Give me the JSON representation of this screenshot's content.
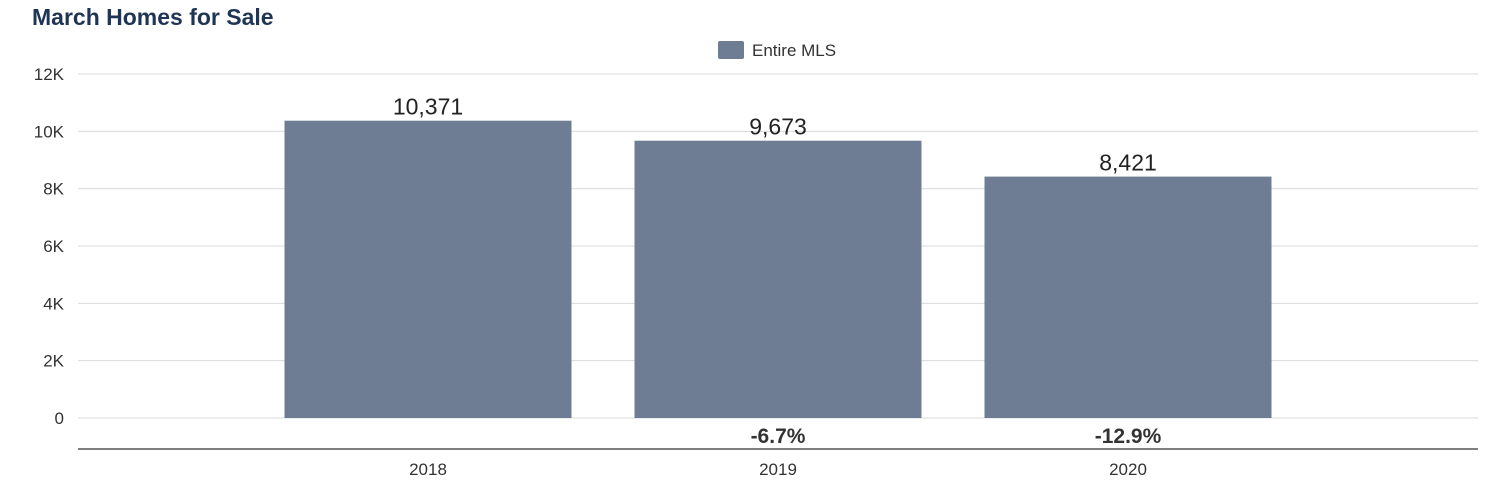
{
  "chart_data": {
    "type": "bar",
    "title": "March Homes for Sale",
    "categories": [
      "2018",
      "2019",
      "2020"
    ],
    "series": [
      {
        "name": "Entire MLS",
        "values": [
          10371,
          9673,
          8421
        ],
        "color": "#6e7d93"
      }
    ],
    "data_labels": [
      "10,371",
      "9,673",
      "8,421"
    ],
    "change_labels": [
      "",
      "-6.7%",
      "-12.9%"
    ],
    "ylim": [
      0,
      12000
    ],
    "y_ticks": [
      0,
      2000,
      4000,
      6000,
      8000,
      10000,
      12000
    ],
    "y_tick_labels": [
      "0",
      "2K",
      "4K",
      "6K",
      "8K",
      "10K",
      "12K"
    ],
    "grid": true,
    "legend_position": "top-center",
    "xlabel": "",
    "ylabel": ""
  }
}
